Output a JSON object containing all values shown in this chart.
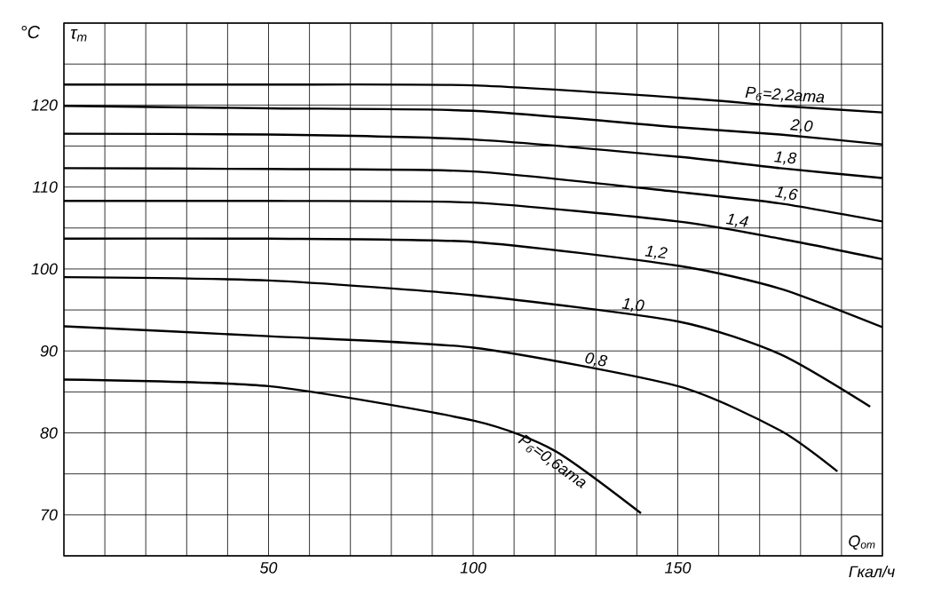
{
  "chart_data": {
    "type": "line",
    "ylabel": "°C",
    "xlabel": "Гкал/ч",
    "annotations": [
      "τ$_{т}$",
      "Q$_{от}$"
    ],
    "xlim": [
      0,
      200
    ],
    "ylim": [
      65,
      130
    ],
    "xticks": [
      {
        "value": 0,
        "label": null
      },
      {
        "value": 10,
        "label": null
      },
      {
        "value": 20,
        "label": null
      },
      {
        "value": 30,
        "label": null
      },
      {
        "value": 40,
        "label": null
      },
      50,
      {
        "value": 60,
        "label": null
      },
      {
        "value": 70,
        "label": null
      },
      {
        "value": 80,
        "label": null
      },
      {
        "value": 90,
        "label": null
      },
      100,
      {
        "value": 110,
        "label": null
      },
      {
        "value": 120,
        "label": null
      },
      {
        "value": 130,
        "label": null
      },
      {
        "value": 140,
        "label": null
      },
      150,
      {
        "value": 160,
        "label": null
      },
      {
        "value": 170,
        "label": null
      },
      {
        "value": 180,
        "label": null
      },
      {
        "value": 190,
        "label": null
      },
      {
        "value": 200,
        "label": null
      }
    ],
    "yticks": [
      {
        "value": 65,
        "label": null
      },
      70,
      {
        "value": 75,
        "label": null
      },
      80,
      {
        "value": 85,
        "label": null
      },
      90,
      {
        "value": 95,
        "label": null
      },
      100,
      {
        "value": 105,
        "label": null
      },
      110,
      {
        "value": 115,
        "label": null
      },
      120,
      {
        "value": 125,
        "label": null
      },
      {
        "value": 130,
        "label": null
      }
    ],
    "grid": true,
    "marker": "none",
    "line_style": "solid",
    "series": [
      {
        "name": "P$_{б}$=2,2ата",
        "color": "#000000",
        "x": [
          0,
          50,
          100,
          150,
          175,
          200
        ],
        "values": [
          122.5,
          122.5,
          122.4,
          120.9,
          119.9,
          119.1
        ]
      },
      {
        "name": "2,0",
        "color": "#000000",
        "x": [
          0,
          50,
          100,
          150,
          175,
          200
        ],
        "values": [
          119.9,
          119.6,
          119.3,
          117.3,
          116.4,
          115.2
        ]
      },
      {
        "name": "1,8",
        "color": "#000000",
        "x": [
          0,
          50,
          100,
          150,
          175,
          200
        ],
        "values": [
          116.5,
          116.4,
          115.8,
          113.7,
          112.3,
          111.1
        ]
      },
      {
        "name": "1,6",
        "color": "#000000",
        "x": [
          0,
          50,
          100,
          150,
          175,
          200
        ],
        "values": [
          112.3,
          112.2,
          111.9,
          109.4,
          108.0,
          105.8
        ]
      },
      {
        "name": "1,4",
        "color": "#000000",
        "x": [
          0,
          50,
          100,
          150,
          175,
          200
        ],
        "values": [
          108.3,
          108.3,
          108.1,
          105.8,
          103.7,
          101.2
        ]
      },
      {
        "name": "1,2",
        "color": "#000000",
        "x": [
          0,
          50,
          100,
          150,
          175,
          200
        ],
        "values": [
          103.7,
          103.7,
          103.3,
          100.4,
          97.6,
          92.9
        ]
      },
      {
        "name": "1,0",
        "color": "#000000",
        "x": [
          0,
          50,
          100,
          150,
          175,
          197
        ],
        "values": [
          99.0,
          98.6,
          96.8,
          93.6,
          89.6,
          83.2
        ]
      },
      {
        "name": "0,8",
        "color": "#000000",
        "x": [
          0,
          50,
          100,
          150,
          175,
          189
        ],
        "values": [
          93.0,
          91.8,
          90.4,
          85.7,
          80.3,
          75.3
        ]
      },
      {
        "name": "P$_{б}$=0,6ата",
        "color": "#000000",
        "x": [
          0,
          50,
          100,
          120,
          141
        ],
        "values": [
          86.5,
          85.7,
          81.5,
          77.8,
          70.2
        ]
      }
    ]
  }
}
